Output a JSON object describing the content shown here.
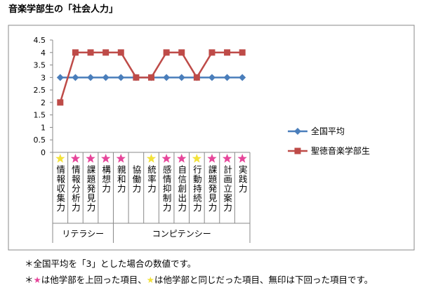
{
  "chart_data": {
    "type": "line",
    "title": "音楽学部生の「社会人力」",
    "categories": [
      "情報収集力",
      "情報分析力",
      "課題発見力",
      "構想力",
      "親和力",
      "協働力",
      "統率力",
      "感情抑制力",
      "自信創出力",
      "行動持続力",
      "課題発見力",
      "計画立案力",
      "実践力"
    ],
    "category_markers": [
      "#f3e23a",
      "#e6459a",
      "#e6459a",
      "#e6459a",
      "#e6459a",
      null,
      "#f3e23a",
      "#e6459a",
      "#e6459a",
      "#f3e23a",
      "#e6459a",
      "#e6459a",
      "#e6459a"
    ],
    "groups": [
      {
        "label": "リテラシー",
        "start": 0,
        "end": 3
      },
      {
        "label": "コンピテンシー",
        "start": 4,
        "end": 12
      }
    ],
    "series": [
      {
        "name": "全国平均",
        "color": "#4a7ebb",
        "marker": "diamond",
        "values": [
          3,
          3,
          3,
          3,
          3,
          3,
          3,
          3,
          3,
          3,
          3,
          3,
          3
        ]
      },
      {
        "name": "聖徳音楽学部生",
        "color": "#be4b48",
        "marker": "square",
        "values": [
          2,
          4,
          4,
          4,
          4,
          3,
          3,
          4,
          4,
          3,
          4,
          4,
          4
        ]
      }
    ],
    "ylim": [
      0,
      4.5
    ],
    "yticks": [
      0,
      0.5,
      1,
      1.5,
      2,
      2.5,
      3,
      3.5,
      4,
      4.5
    ],
    "grid": false
  },
  "notes": [
    "＊全国平均を「3」とした場合の数値です。",
    [
      "＊",
      "★",
      "は他学部を上回った項目、",
      "★",
      "は他学部と同じだった項目、無印は下回った項目です。"
    ]
  ]
}
